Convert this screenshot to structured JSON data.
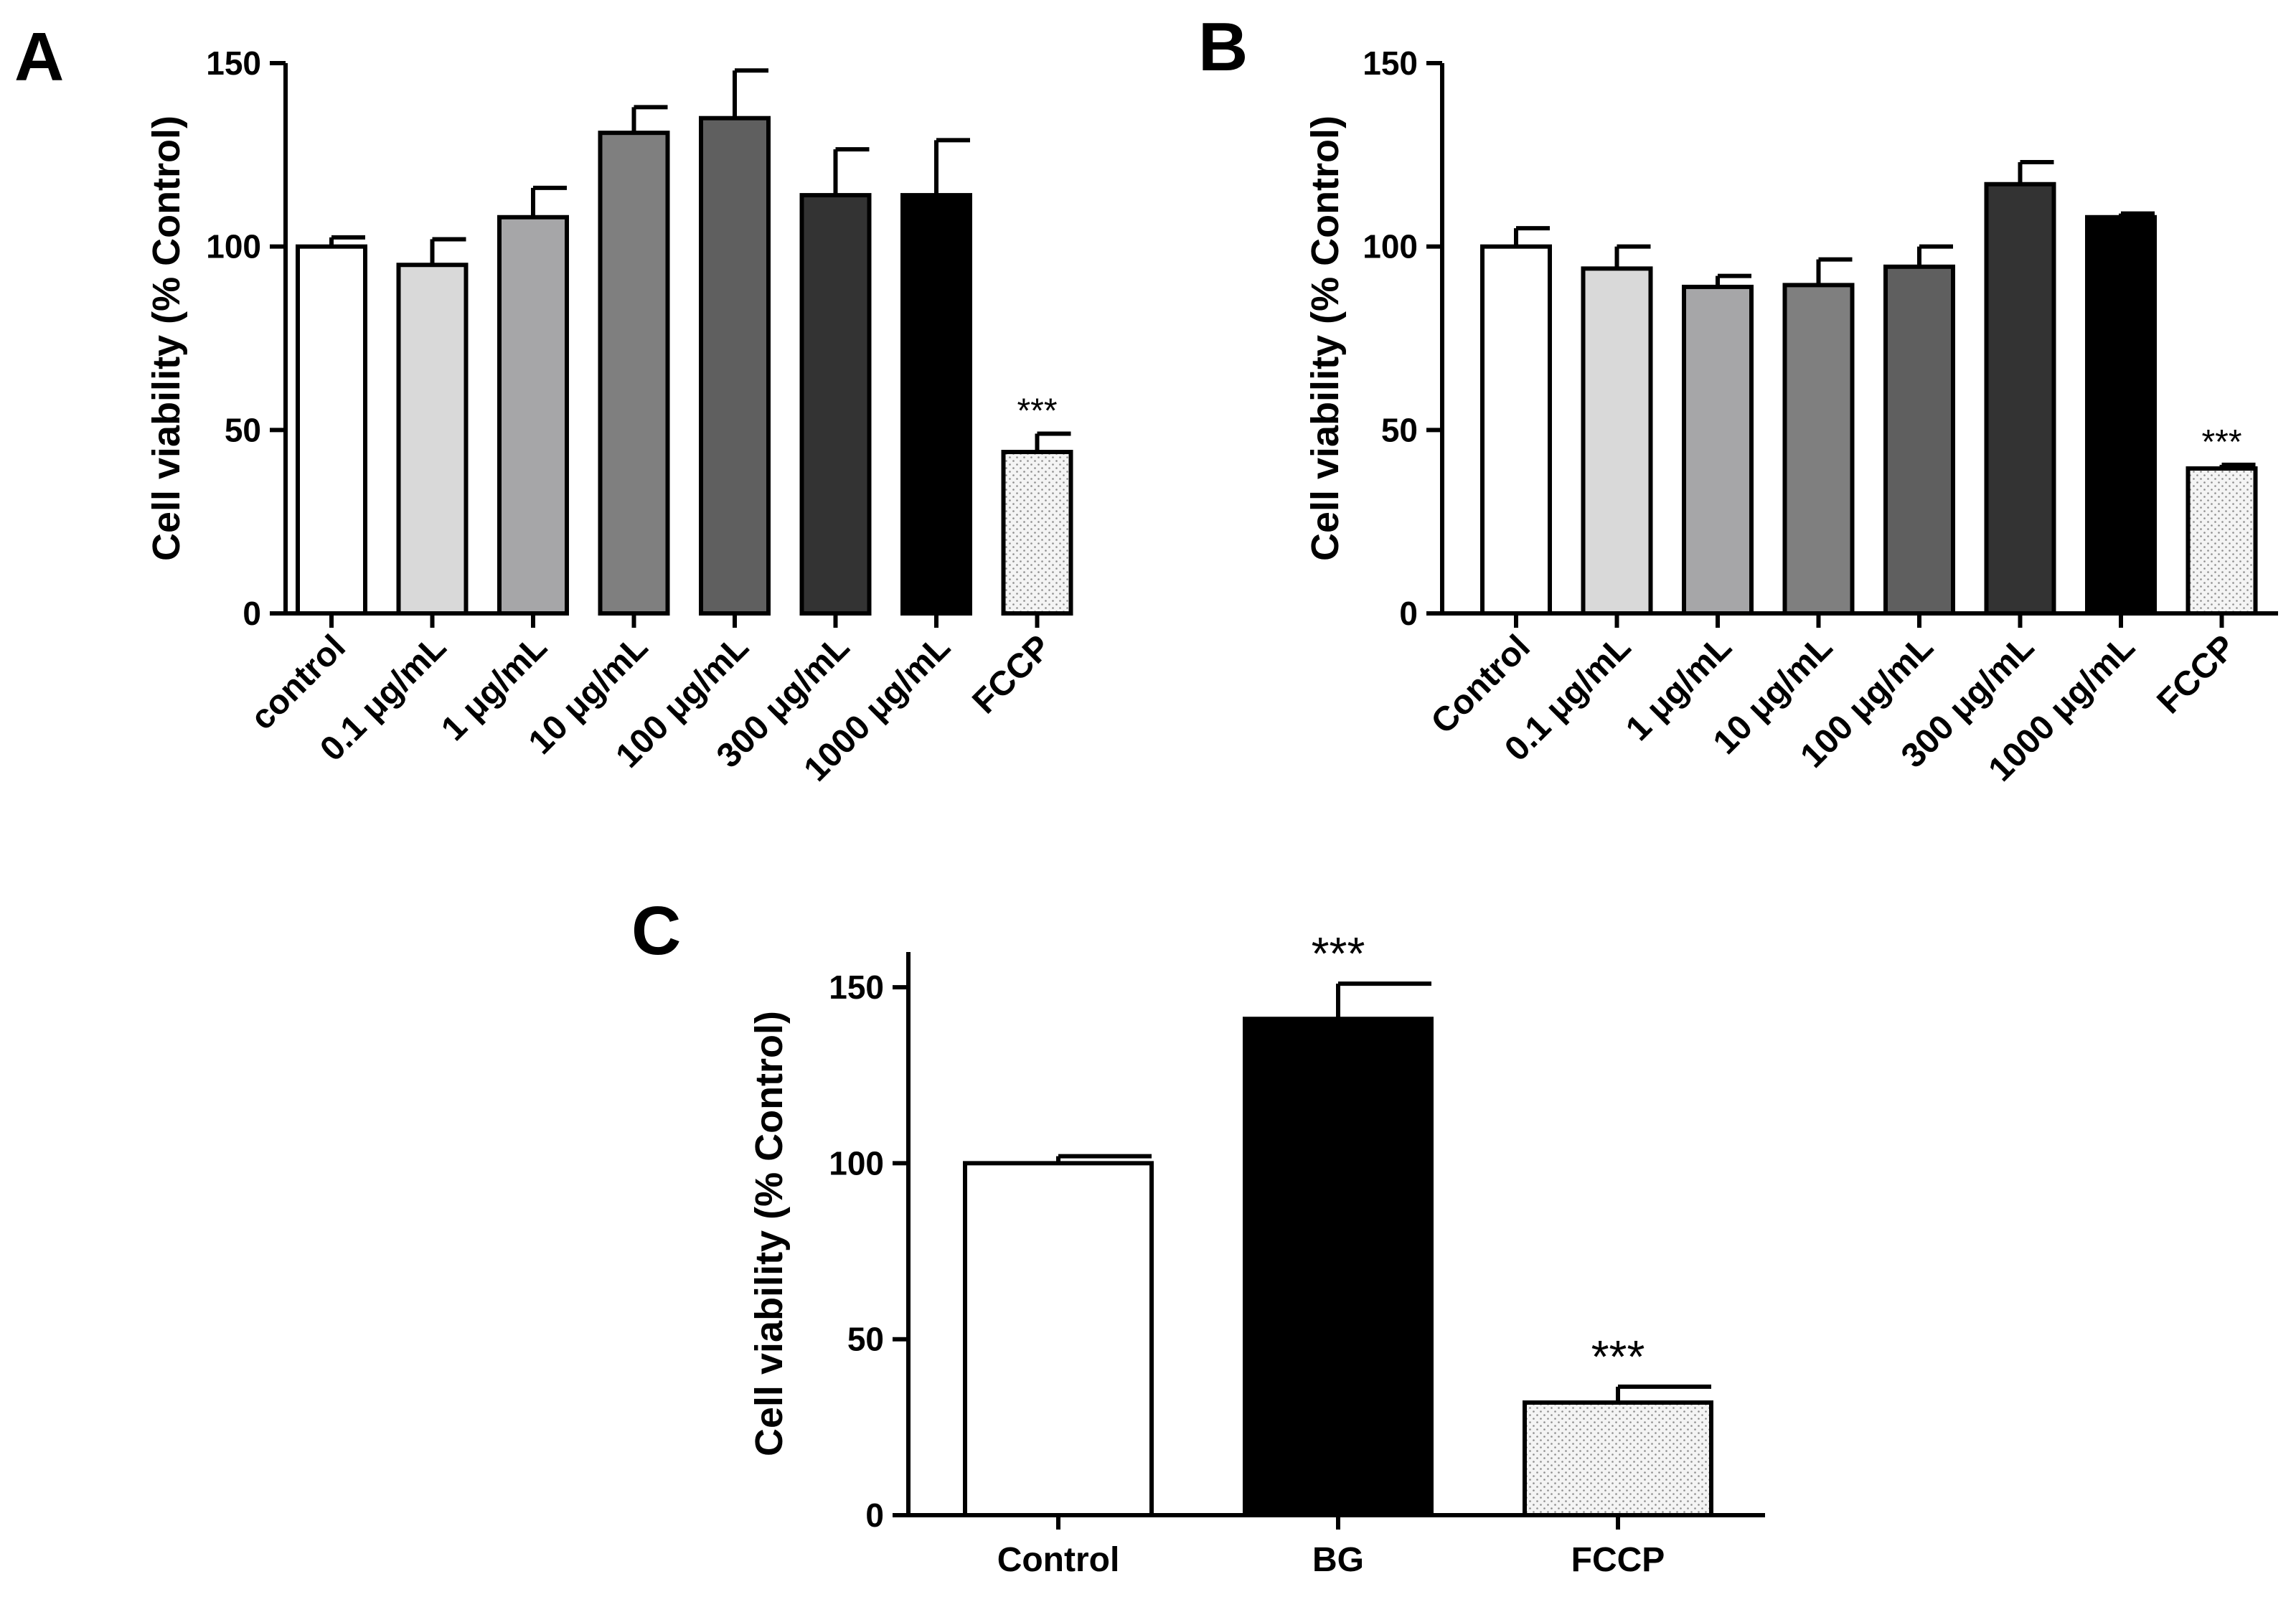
{
  "chart_data": [
    {
      "id": "A",
      "type": "bar",
      "panel_label": "A",
      "ylabel": "Cell viability (% Control)",
      "ylim": [
        0,
        150
      ],
      "yticks": [
        0,
        50,
        100,
        150
      ],
      "categories": [
        "control",
        "0.1 μg/mL",
        "1 μg/mL",
        "10 μg/mL",
        "100 μg/mL",
        "300 μg/mL",
        "1000 μg/mL",
        "FCCP"
      ],
      "values": [
        100,
        95,
        108,
        131,
        135,
        114,
        114,
        44
      ],
      "errors": [
        2.5,
        7,
        8,
        7,
        13,
        12.5,
        15,
        5
      ],
      "fills": [
        "#ffffff",
        "#d9d9d9",
        "#a6a6a8",
        "#7f7f7f",
        "#5f5f5f",
        "#333333",
        "#000000",
        "pattern"
      ],
      "significance": [
        "",
        "",
        "",
        "",
        "",
        "",
        "",
        "***"
      ]
    },
    {
      "id": "B",
      "type": "bar",
      "panel_label": "B",
      "ylabel": "Cell viability (% Control)",
      "ylim": [
        0,
        150
      ],
      "yticks": [
        0,
        50,
        100,
        150
      ],
      "categories": [
        "Control",
        "0.1 μg/mL",
        "1 μg/mL",
        "10 μg/mL",
        "100 μg/mL",
        "300 μg/mL",
        "1000 μg/mL",
        "FCCP"
      ],
      "values": [
        100,
        94,
        89,
        89.5,
        94.5,
        117,
        108,
        39.5
      ],
      "errors": [
        5,
        6,
        3,
        7,
        5.5,
        6,
        1,
        1
      ],
      "fills": [
        "#ffffff",
        "#d9d9d9",
        "#a6a6a8",
        "#7f7f7f",
        "#5f5f5f",
        "#333333",
        "#000000",
        "pattern"
      ],
      "significance": [
        "",
        "",
        "",
        "",
        "",
        "",
        "",
        "***"
      ]
    },
    {
      "id": "C",
      "type": "bar",
      "panel_label": "C",
      "ylabel": "Cell viability (% Control)",
      "ylim": [
        0,
        160
      ],
      "yticks": [
        0,
        50,
        100,
        150
      ],
      "categories": [
        "Control",
        "BG",
        "FCCP"
      ],
      "values": [
        100,
        141,
        32
      ],
      "errors": [
        2,
        10,
        4.5
      ],
      "fills": [
        "#ffffff",
        "#000000",
        "pattern"
      ],
      "significance": [
        "",
        "***",
        "***"
      ]
    }
  ]
}
